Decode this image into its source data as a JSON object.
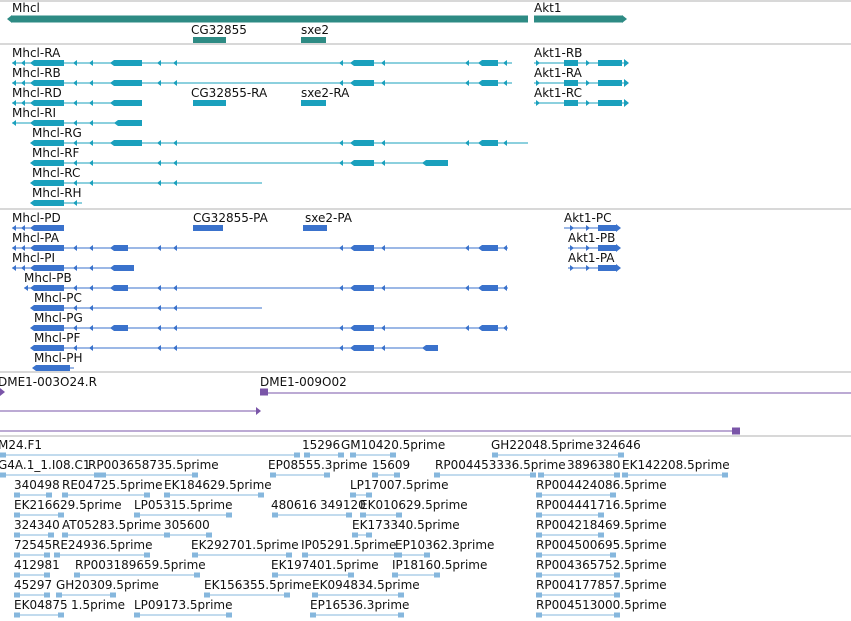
{
  "colors": {
    "gene": "#2e8b84",
    "transcript_a": "#1aa0bd",
    "transcript_b": "#3a72cc",
    "insertion": "#7a55a8",
    "est": "#86b7dd",
    "divider": "#b0b0b0"
  },
  "icons": [
    "arrow-right-glyph",
    "arrow-left-glyph"
  ],
  "tracks": {
    "genes": {
      "labels": [
        "Mhcl",
        "Akt1",
        "CG32855",
        "sxe2"
      ]
    },
    "transcripts_a": {
      "labels": [
        "Mhcl-RA",
        "Mhcl-RB",
        "Mhcl-RD",
        "Mhcl-RI",
        "Mhcl-RG",
        "Mhcl-RF",
        "Mhcl-RC",
        "Mhcl-RH",
        "CG32855-RA",
        "sxe2-RA",
        "Akt1-RB",
        "Akt1-RA",
        "Akt1-RC"
      ]
    },
    "transcripts_b": {
      "labels": [
        "Mhcl-PD",
        "Mhcl-PA",
        "Mhcl-PI",
        "Mhcl-PB",
        "Mhcl-PC",
        "Mhcl-PG",
        "Mhcl-PF",
        "Mhcl-PH",
        "CG32855-PA",
        "sxe2-PA",
        "Akt1-PC",
        "Akt1-PB",
        "Akt1-PA"
      ]
    },
    "insertions": {
      "labels": [
        "DME1-003O24.R",
        "DME1-009O02"
      ]
    },
    "ests": {
      "labels": [
        "M24.F1",
        "15296",
        "GM10420.5prime",
        "GH22048.5prime",
        "324646",
        "G4A.1_1.I08.C1",
        "RP003658735.5prime",
        "EP08555.3prime",
        "15609",
        "RP004453336.5prime",
        "3896380",
        "EK142208.5prime",
        "340498",
        "RE04725.5prime",
        "EK184629.5prime",
        "LP17007.5prime",
        "RP004424086.5prime",
        "EK216629.5prime",
        "LP05315.5prime",
        "480616",
        "349120",
        "EK010629.5prime",
        "RP004441716.5prime",
        "324340",
        "AT05283.5prime",
        "305600",
        "EK173340.5prime",
        "RP004218469.5prime",
        "72545",
        "RE24936.5prime",
        "EK292701.5prime",
        "IP05291.5prime",
        "EP10362.3prime",
        "RP004500695.5prime",
        "412981",
        "RP003189659.5prime",
        "EK197401.5prime",
        "IP18160.5prime",
        "RP004365752.5prime",
        "45297",
        "GH20309.5prime",
        "EK156355.5prime",
        "EK094834.5prime",
        "RP004177857.5prime",
        "EK04875",
        "1.5prime",
        "LP09173.5prime",
        "EP16536.3prime",
        "RP004513000.5prime"
      ]
    }
  }
}
